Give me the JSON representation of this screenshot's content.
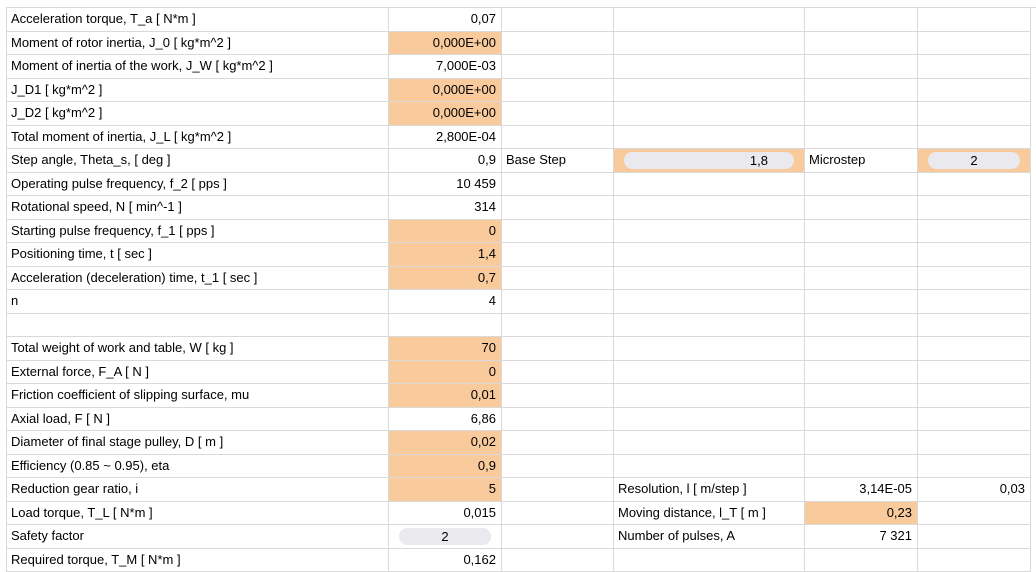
{
  "rows": [
    {
      "label": "Acceleration torque, T_a [ N*m ]",
      "value": "0,07",
      "orange": false
    },
    {
      "label": "Moment of rotor inertia, J_0 [ kg*m^2 ]",
      "value": "0,000E+00",
      "orange": true
    },
    {
      "label": "Moment of inertia of the work, J_W [ kg*m^2 ]",
      "value": "7,000E-03",
      "orange": false
    },
    {
      "label": "J_D1 [ kg*m^2 ]",
      "value": "0,000E+00",
      "orange": true
    },
    {
      "label": "J_D2 [ kg*m^2 ]",
      "value": "0,000E+00",
      "orange": true
    },
    {
      "label": "Total moment of inertia, J_L [ kg*m^2 ]",
      "value": "2,800E-04",
      "orange": false
    },
    {
      "label": "Step angle, Theta_s, [ deg ]",
      "value": "0,9",
      "orange": false
    },
    {
      "label": "Operating pulse frequency, f_2 [ pps ]",
      "value": "10 459",
      "orange": false
    },
    {
      "label": "Rotational speed, N [ min^-1 ]",
      "value": "314",
      "orange": false
    },
    {
      "label": "Starting pulse frequency, f_1 [ pps ]",
      "value": "0",
      "orange": true
    },
    {
      "label": "Positioning time, t [ sec ]",
      "value": "1,4",
      "orange": true
    },
    {
      "label": "Acceleration (deceleration) time, t_1 [ sec ]",
      "value": "0,7",
      "orange": true
    },
    {
      "label": "n",
      "value": "4",
      "orange": false
    },
    {
      "label": "",
      "value": "",
      "orange": false
    },
    {
      "label": "Total weight of work and table, W [ kg ]",
      "value": "70",
      "orange": true
    },
    {
      "label": "External force, F_A [ N ]",
      "value": "0",
      "orange": true
    },
    {
      "label": "Friction coefficient of slipping surface, mu",
      "value": "0,01",
      "orange": true
    },
    {
      "label": "Axial load, F [ N ]",
      "value": "6,86",
      "orange": false
    },
    {
      "label": "Diameter of final stage pulley, D [ m ]",
      "value": "0,02",
      "orange": true
    },
    {
      "label": "Efficiency (0.85 ~ 0.95), eta",
      "value": "0,9",
      "orange": true
    },
    {
      "label": "Reduction gear ratio, i",
      "value": "5",
      "orange": true
    },
    {
      "label": "Load torque, T_L [ N*m ]",
      "value": "0,015",
      "orange": false
    },
    {
      "label": "Safety factor",
      "value": "2",
      "orange": false,
      "dropdown": true
    },
    {
      "label": "Required torque, T_M [ N*m ]",
      "value": "0,162",
      "orange": false
    }
  ],
  "step": {
    "base_step_label": "Base Step",
    "base_step_value": "1,8",
    "microstep_label": "Microstep",
    "microstep_value": "2"
  },
  "right_block": {
    "resolution_label": "Resolution, l [ m/step ]",
    "resolution_value": "3,14E-05",
    "resolution_extra": "0,03",
    "moving_label": "Moving distance, l_T [ m ]",
    "moving_value": "0,23",
    "pulses_label": "Number of pulses, A",
    "pulses_value": "7 321"
  },
  "colors": {
    "input_fill": "#f9cb9c",
    "grid": "#d9d9d9",
    "dropdown_pill": "#e9e9ee"
  }
}
